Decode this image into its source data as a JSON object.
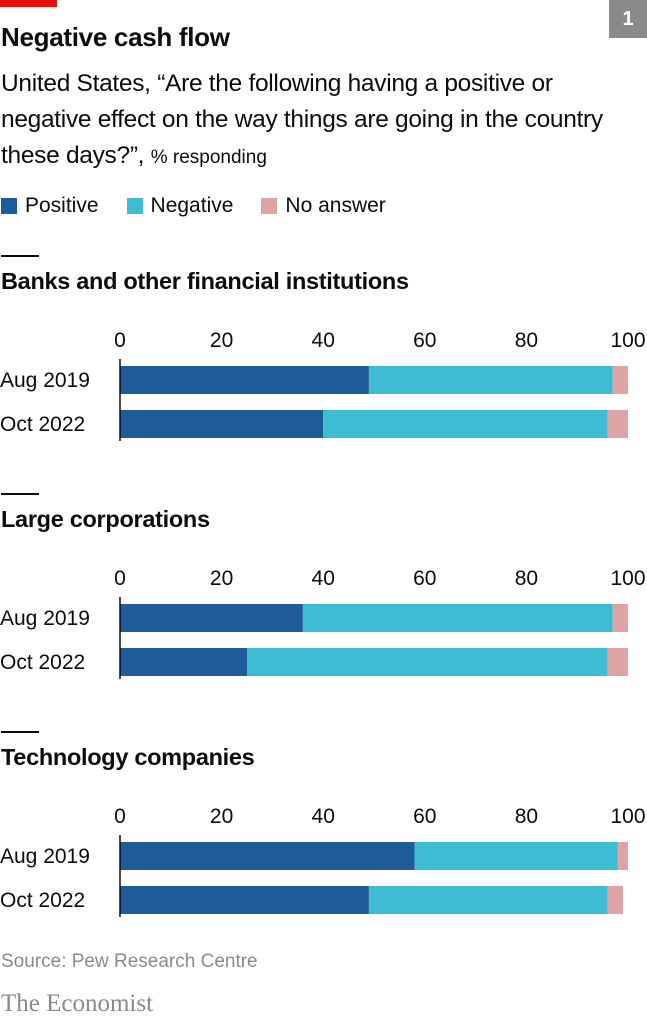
{
  "header": {
    "badge": "1",
    "title": "Negative cash flow",
    "subtitle": "United States, “Are the following having a positive or negative effect on the way things are going in the country these days?”,",
    "unit": "% responding"
  },
  "colors": {
    "positive": "#1f5c99",
    "negative": "#3ebcd2",
    "no_answer": "#e0a3a3",
    "accent": "#e3120b"
  },
  "legend": [
    "Positive",
    "Negative",
    "No answer"
  ],
  "chart_data": [
    {
      "type": "bar",
      "stacked": true,
      "orientation": "horizontal",
      "title": "Banks and other financial institutions",
      "categories": [
        "Aug 2019",
        "Oct 2022"
      ],
      "series": [
        {
          "name": "Positive",
          "values": [
            49,
            40
          ]
        },
        {
          "name": "Negative",
          "values": [
            48,
            56
          ]
        },
        {
          "name": "No answer",
          "values": [
            3,
            4
          ]
        }
      ],
      "xlim": [
        0,
        100
      ],
      "xticks": [
        0,
        20,
        40,
        60,
        80,
        100
      ],
      "xtick_labels": [
        "0",
        "20",
        "40",
        "60",
        "80",
        "100"
      ]
    },
    {
      "type": "bar",
      "stacked": true,
      "orientation": "horizontal",
      "title": "Large corporations",
      "categories": [
        "Aug 2019",
        "Oct 2022"
      ],
      "series": [
        {
          "name": "Positive",
          "values": [
            36,
            25
          ]
        },
        {
          "name": "Negative",
          "values": [
            61,
            71
          ]
        },
        {
          "name": "No answer",
          "values": [
            3,
            4
          ]
        }
      ],
      "xlim": [
        0,
        100
      ],
      "xticks": [
        0,
        20,
        40,
        60,
        80,
        100
      ],
      "xtick_labels": [
        "0",
        "20",
        "40",
        "60",
        "80",
        "100"
      ]
    },
    {
      "type": "bar",
      "stacked": true,
      "orientation": "horizontal",
      "title": "Technology companies",
      "categories": [
        "Aug 2019",
        "Oct 2022"
      ],
      "series": [
        {
          "name": "Positive",
          "values": [
            58,
            49
          ]
        },
        {
          "name": "Negative",
          "values": [
            40,
            47
          ]
        },
        {
          "name": "No answer",
          "values": [
            2,
            3
          ]
        }
      ],
      "xlim": [
        0,
        100
      ],
      "xticks": [
        0,
        20,
        40,
        60,
        80,
        100
      ],
      "xtick_labels": [
        "0",
        "20",
        "40",
        "60",
        "80",
        "100"
      ]
    }
  ],
  "footer": {
    "source": "Source: Pew Research Centre",
    "brand": "The Economist"
  }
}
